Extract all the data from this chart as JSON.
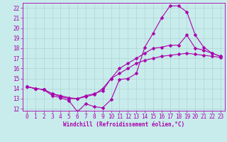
{
  "xlabel": "Windchill (Refroidissement éolien,°C)",
  "bg_color": "#c8ecec",
  "line_color": "#aa00aa",
  "grid_color": "#aacccc",
  "axis_color": "#aa00aa",
  "xlim": [
    -0.5,
    23.5
  ],
  "ylim": [
    11.8,
    22.5
  ],
  "xticks": [
    0,
    1,
    2,
    3,
    4,
    5,
    6,
    7,
    8,
    9,
    10,
    11,
    12,
    13,
    14,
    15,
    16,
    17,
    18,
    19,
    20,
    21,
    22,
    23
  ],
  "yticks": [
    12,
    13,
    14,
    15,
    16,
    17,
    18,
    19,
    20,
    21,
    22
  ],
  "curve1_x": [
    0,
    1,
    2,
    3,
    4,
    5,
    6,
    7,
    8,
    9,
    10,
    11,
    12,
    13,
    14,
    15,
    16,
    17,
    18,
    19,
    20,
    21,
    22,
    23
  ],
  "curve1_y": [
    14.2,
    14.0,
    13.9,
    13.3,
    13.1,
    12.8,
    11.7,
    12.5,
    12.2,
    12.1,
    12.9,
    14.9,
    15.0,
    15.5,
    18.1,
    19.5,
    21.0,
    22.2,
    22.2,
    21.6,
    19.3,
    18.1,
    17.5,
    17.2
  ],
  "curve2_x": [
    0,
    1,
    2,
    3,
    4,
    5,
    6,
    7,
    8,
    9,
    10,
    11,
    12,
    13,
    14,
    15,
    16,
    17,
    18,
    19,
    20,
    21,
    22,
    23
  ],
  "curve2_y": [
    14.2,
    14.0,
    13.9,
    13.5,
    13.2,
    13.0,
    13.0,
    13.3,
    13.5,
    13.8,
    15.0,
    16.0,
    16.5,
    17.0,
    17.5,
    18.0,
    18.1,
    18.3,
    18.3,
    19.3,
    18.0,
    17.8,
    17.5,
    17.2
  ],
  "curve3_x": [
    0,
    1,
    2,
    3,
    4,
    5,
    6,
    7,
    8,
    9,
    10,
    11,
    12,
    13,
    14,
    15,
    16,
    17,
    18,
    19,
    20,
    21,
    22,
    23
  ],
  "curve3_y": [
    14.2,
    14.0,
    13.9,
    13.5,
    13.3,
    13.1,
    13.0,
    13.2,
    13.4,
    14.0,
    15.0,
    15.5,
    16.0,
    16.5,
    16.8,
    17.0,
    17.2,
    17.3,
    17.4,
    17.5,
    17.4,
    17.3,
    17.2,
    17.1
  ],
  "tick_fontsize": 5.5,
  "xlabel_fontsize": 5.5
}
